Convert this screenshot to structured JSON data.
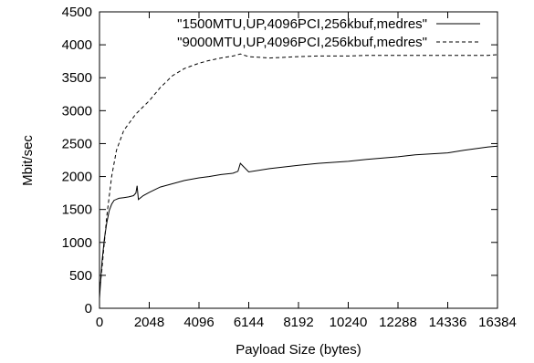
{
  "chart_data": {
    "type": "line",
    "title": "",
    "xlabel": "Payload Size (bytes)",
    "ylabel": "Mbit/sec",
    "xlim": [
      0,
      16384
    ],
    "ylim": [
      0,
      4500
    ],
    "xticks": [
      0,
      2048,
      4096,
      6144,
      8192,
      10240,
      12288,
      14336,
      16384
    ],
    "yticks": [
      0,
      500,
      1000,
      1500,
      2000,
      2500,
      3000,
      3500,
      4000,
      4500
    ],
    "grid": false,
    "legend_position": "top-right",
    "series": [
      {
        "name": "\"1500MTU,UP,4096PCI,256kbuf,medres\"",
        "style": "solid",
        "x": [
          0,
          100,
          200,
          300,
          400,
          500,
          600,
          800,
          1000,
          1200,
          1400,
          1500,
          1550,
          1600,
          1800,
          2048,
          2500,
          3000,
          3500,
          4096,
          4500,
          5000,
          5500,
          5700,
          5800,
          6144,
          7000,
          8192,
          9000,
          10240,
          11000,
          12288,
          13000,
          14336,
          15000,
          16000,
          16384
        ],
        "y": [
          150,
          700,
          1050,
          1300,
          1480,
          1580,
          1640,
          1670,
          1680,
          1690,
          1710,
          1750,
          1860,
          1650,
          1710,
          1760,
          1840,
          1890,
          1940,
          1980,
          2000,
          2030,
          2050,
          2080,
          2200,
          2070,
          2120,
          2170,
          2200,
          2230,
          2260,
          2300,
          2330,
          2360,
          2400,
          2450,
          2460
        ]
      },
      {
        "name": "\"9000MTU,UP,4096PCI,256kbuf,medres\"",
        "style": "dashed",
        "x": [
          0,
          100,
          200,
          300,
          500,
          700,
          1000,
          1500,
          2048,
          2500,
          3000,
          3500,
          4096,
          4500,
          5000,
          5500,
          5800,
          6144,
          7000,
          8192,
          9000,
          10240,
          11000,
          12288,
          13000,
          14336,
          15000,
          16000,
          16384
        ],
        "y": [
          250,
          600,
          1000,
          1400,
          2000,
          2400,
          2700,
          2950,
          3150,
          3350,
          3530,
          3640,
          3720,
          3760,
          3800,
          3830,
          3860,
          3820,
          3800,
          3820,
          3830,
          3830,
          3840,
          3840,
          3840,
          3840,
          3840,
          3840,
          3850
        ]
      }
    ]
  }
}
